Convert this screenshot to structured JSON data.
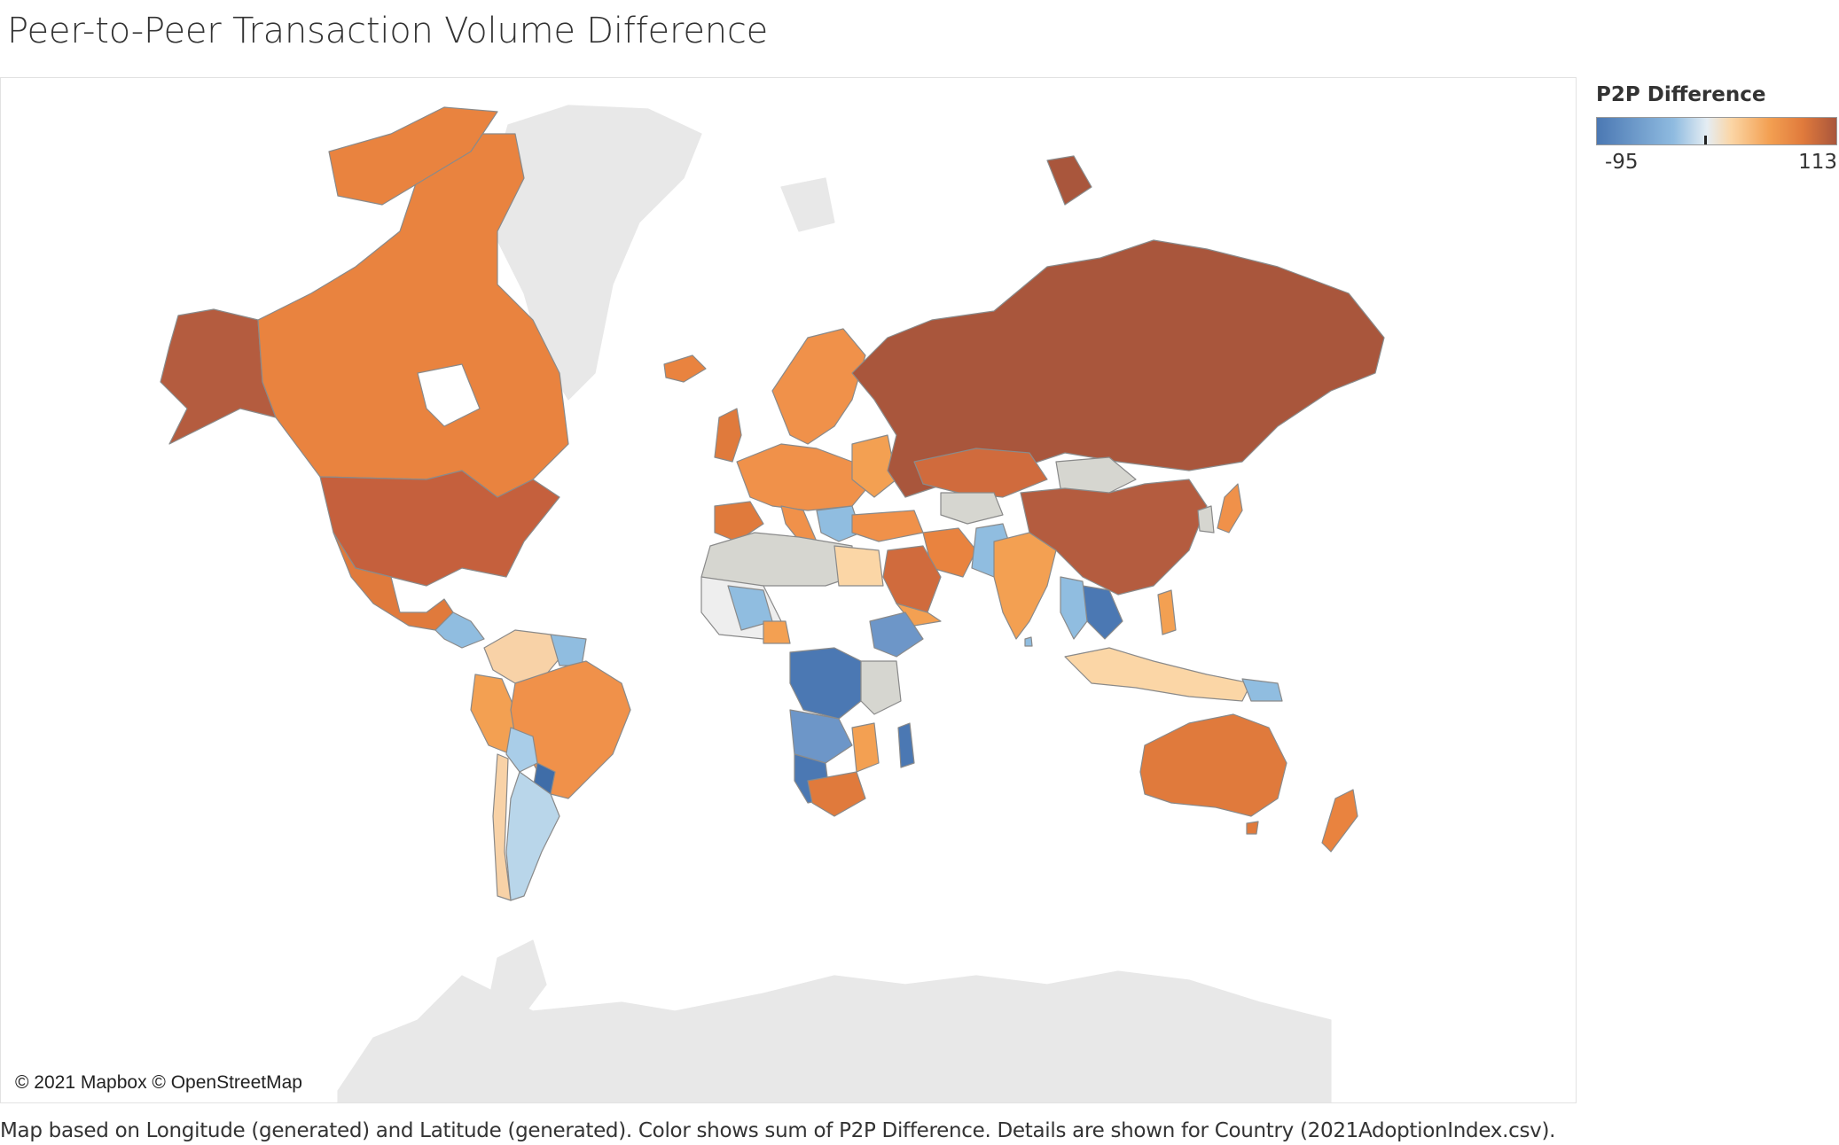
{
  "title": "Peer-to-Peer Transaction Volume Difference",
  "attribution": "© 2021 Mapbox © OpenStreetMap",
  "caption": "Map based on Longitude (generated) and Latitude (generated).  Color shows sum of P2P Difference.  Details are shown for Country (2021AdoptionIndex.csv).",
  "legend": {
    "title": "P2P Difference",
    "min_label": "-95",
    "max_label": "113",
    "min": -95,
    "max": 113,
    "colors": [
      "#4b78b3",
      "#8fbbe0",
      "#e5edf3",
      "#fbd6a6",
      "#f3a052",
      "#e07a3c",
      "#a9563c"
    ]
  },
  "map": {
    "basemap_land_color": "#e8e8e8",
    "basemap_water_color": "#ffffff",
    "border_color": "#8a8a8a",
    "no_data_color": "#e8e8e8"
  }
}
